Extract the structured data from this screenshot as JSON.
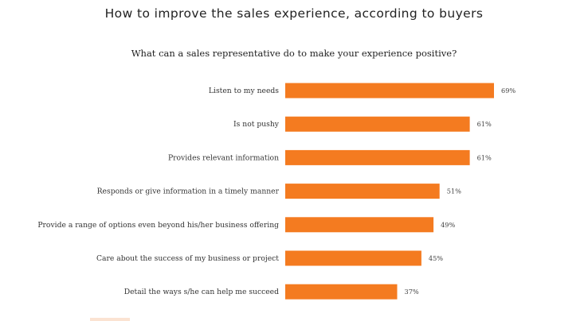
{
  "chart_data": {
    "type": "bar",
    "orientation": "horizontal",
    "title": "How to improve the sales experience, according to buyers",
    "subtitle": "What can a sales representative do to make your experience positive?",
    "categories": [
      "Listen to my needs",
      "Is not pushy",
      "Provides relevant information",
      "Responds or give information in a timely manner",
      "Provide a range of options even beyond his/her business offering",
      "Care about the success of my business or project",
      "Detail the ways s/he can help me succeed"
    ],
    "values": [
      69,
      61,
      61,
      51,
      49,
      45,
      37
    ],
    "value_labels": [
      "69%",
      "61%",
      "61%",
      "51%",
      "49%",
      "45%",
      "37%"
    ],
    "unit": "%",
    "bar_color": "#f47b20",
    "grid": false,
    "legend": "none",
    "xlim": [
      0,
      69
    ]
  }
}
